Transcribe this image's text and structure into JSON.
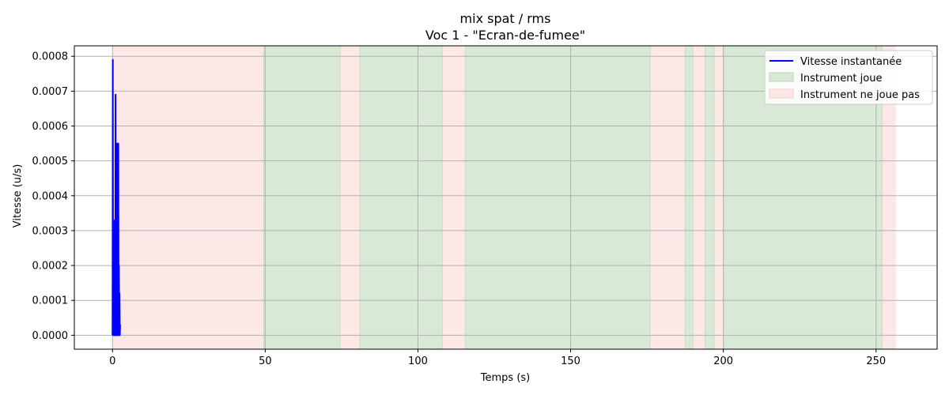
{
  "chart_data": {
    "type": "line",
    "title": "mix spat / rms",
    "subtitle": "Voc 1 - \"Ecran-de-fumee\"",
    "xlabel": "Temps (s)",
    "ylabel": "Vitesse (u/s)",
    "xlim": [
      -12.5,
      270
    ],
    "ylim": [
      -4e-05,
      0.00083
    ],
    "xticks": [
      0,
      50,
      100,
      150,
      200,
      250
    ],
    "yticks": [
      "0.0000",
      "0.0001",
      "0.0002",
      "0.0003",
      "0.0004",
      "0.0005",
      "0.0006",
      "0.0007",
      "0.0008"
    ],
    "ytick_values": [
      0,
      0.0001,
      0.0002,
      0.0003,
      0.0004,
      0.0005,
      0.0006,
      0.0007,
      0.0008
    ],
    "grid": true,
    "legend_position": "top-right",
    "series": [
      {
        "name": "Vitesse instantanée",
        "color": "#0000ff",
        "x": [
          0.0,
          0.1,
          0.2,
          0.3,
          0.4,
          0.5,
          0.6,
          0.7,
          0.8,
          0.9,
          1.0,
          1.1,
          1.2,
          1.3,
          1.4,
          1.5,
          1.6,
          1.7,
          1.8,
          1.9,
          2.0,
          2.1,
          2.2,
          2.3,
          2.4,
          2.5
        ],
        "y": [
          0.0,
          0.00079,
          0.0,
          0.00029,
          3e-05,
          0.00024,
          0.0,
          0.00033,
          0.0,
          3e-05,
          0.00069,
          0.0,
          0.00055,
          0.0,
          4e-05,
          0.00055,
          0.0,
          0.00041,
          4e-05,
          0.00055,
          0.0,
          0.0002,
          3e-05,
          0.00012,
          0.0,
          3e-05
        ]
      }
    ],
    "regions": {
      "playing_label": "Instrument joue",
      "not_playing_label": "Instrument ne joue pas",
      "playing_color": "#d8ead6",
      "not_playing_color": "#fde8e8",
      "not_playing": [
        [
          0,
          49.5
        ],
        [
          74.5,
          81
        ],
        [
          108,
          115.5
        ],
        [
          176,
          187.5
        ],
        [
          190,
          194
        ],
        [
          197,
          200
        ],
        [
          252,
          256.5
        ]
      ],
      "playing": [
        [
          49.5,
          74.5
        ],
        [
          81,
          108
        ],
        [
          115.5,
          176
        ],
        [
          187.5,
          190
        ],
        [
          194,
          197
        ],
        [
          200,
          252
        ]
      ]
    }
  }
}
